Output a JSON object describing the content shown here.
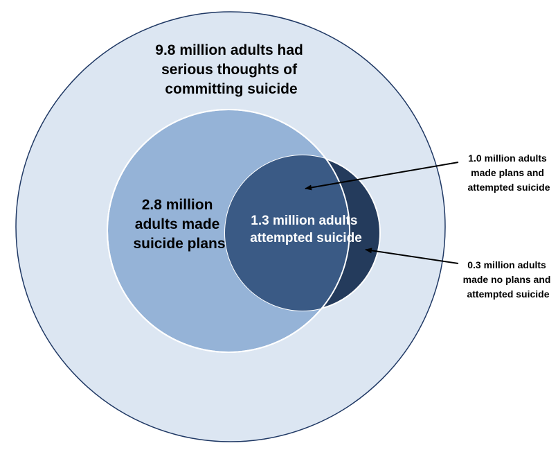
{
  "diagram": {
    "outer": {
      "lines": [
        "9.8 million adults had",
        "serious thoughts of",
        "committing suicide"
      ],
      "color": "#dce6f2",
      "stroke": "#1f3864"
    },
    "plans": {
      "lines": [
        "2.8 million",
        "adults made",
        "suicide plans"
      ],
      "color": "#95b3d7"
    },
    "attempted": {
      "lines": [
        "1.3 million adults",
        "attempted suicide"
      ],
      "color": "#3a5a85",
      "outside_color": "#243b5c"
    },
    "callouts": [
      {
        "lines": [
          "1.0 million adults",
          "made plans and",
          "attempted suicide"
        ]
      },
      {
        "lines": [
          "0.3 million adults",
          "made no plans and",
          "attempted suicide"
        ]
      }
    ]
  }
}
